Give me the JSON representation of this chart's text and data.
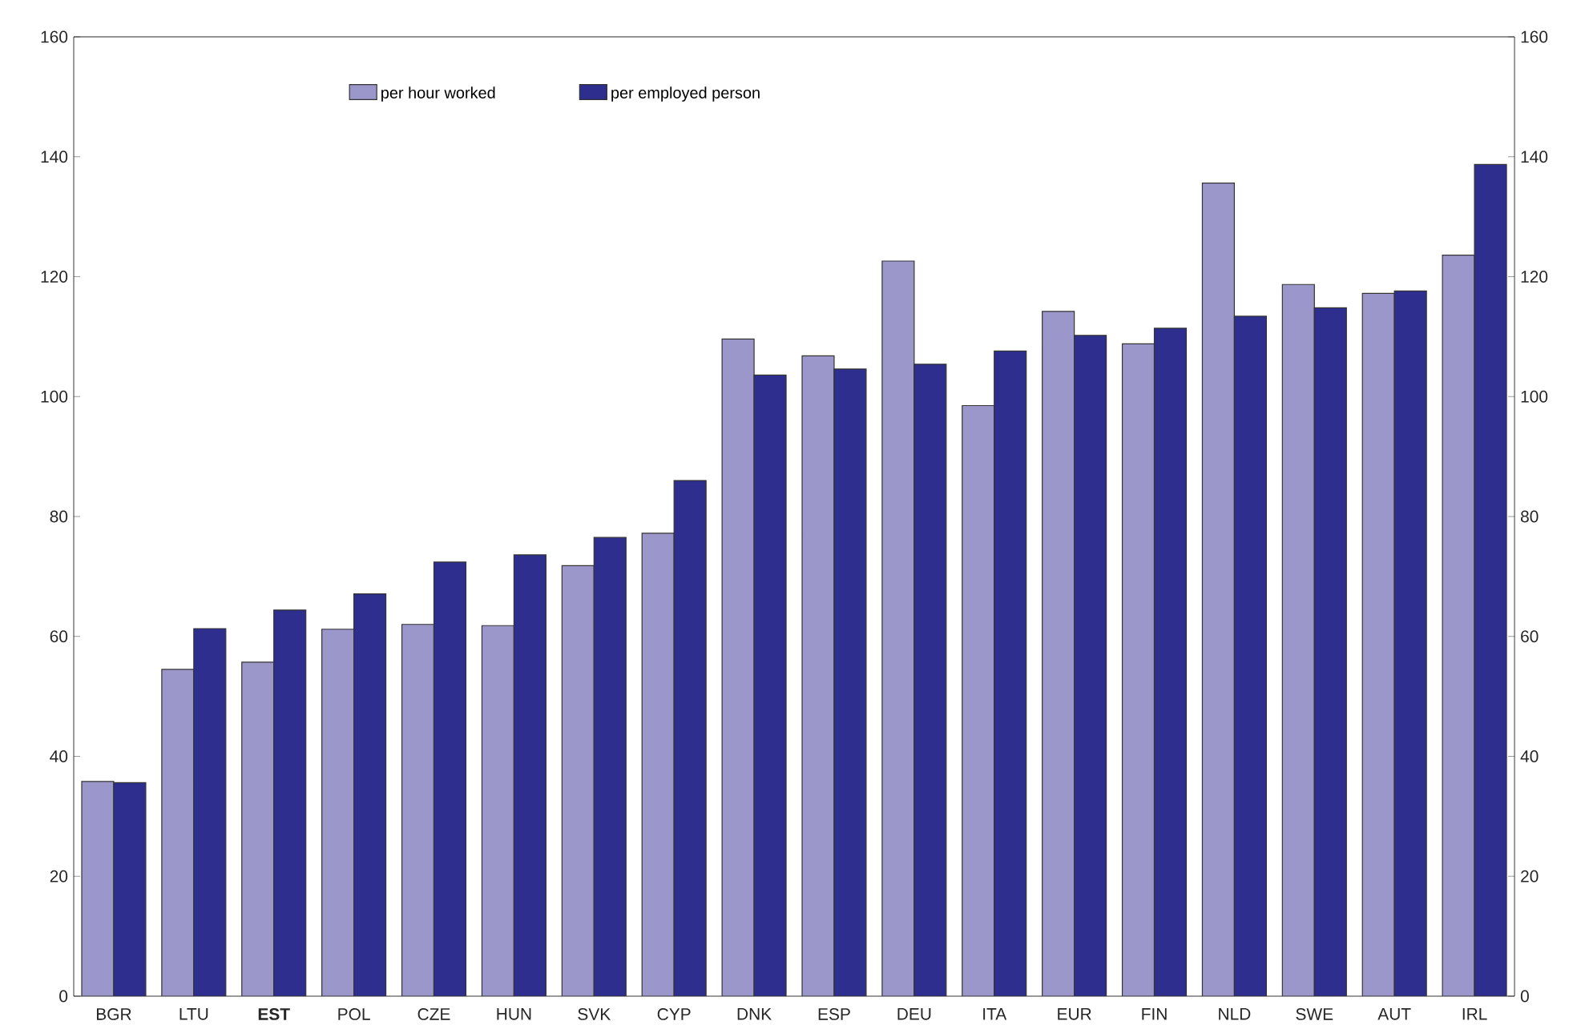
{
  "chart_data": {
    "type": "bar",
    "categories": [
      "BGR",
      "LTU",
      "**EST**",
      "POL",
      "CZE",
      "HUN",
      "SVK",
      "CYP",
      "DNK",
      "ESP",
      "DEU",
      "ITA",
      "EUR",
      "FIN",
      "NLD",
      "SWE",
      "AUT",
      "IRL"
    ],
    "series": [
      {
        "name": "per hour worked",
        "color": "#9c97cb",
        "values": [
          35.8,
          54.5,
          55.7,
          61.2,
          62.0,
          61.8,
          71.8,
          77.2,
          109.6,
          106.8,
          122.6,
          98.5,
          114.2,
          108.8,
          135.6,
          118.7,
          117.2,
          123.6
        ]
      },
      {
        "name": "per employed person",
        "color": "#2e2e8f",
        "values": [
          35.6,
          61.3,
          64.4,
          67.1,
          72.4,
          73.6,
          76.5,
          86.0,
          103.6,
          104.6,
          105.4,
          107.6,
          110.2,
          111.4,
          113.4,
          114.8,
          117.6,
          138.7
        ]
      }
    ],
    "ylim": [
      0,
      160
    ],
    "yticks": [
      0,
      20,
      40,
      60,
      80,
      100,
      120,
      140,
      160
    ],
    "y2lim": [
      0,
      160
    ],
    "y2ticks": [
      0,
      20,
      40,
      60,
      80,
      100,
      120,
      140,
      160
    ],
    "legend": "top",
    "grid": false
  }
}
